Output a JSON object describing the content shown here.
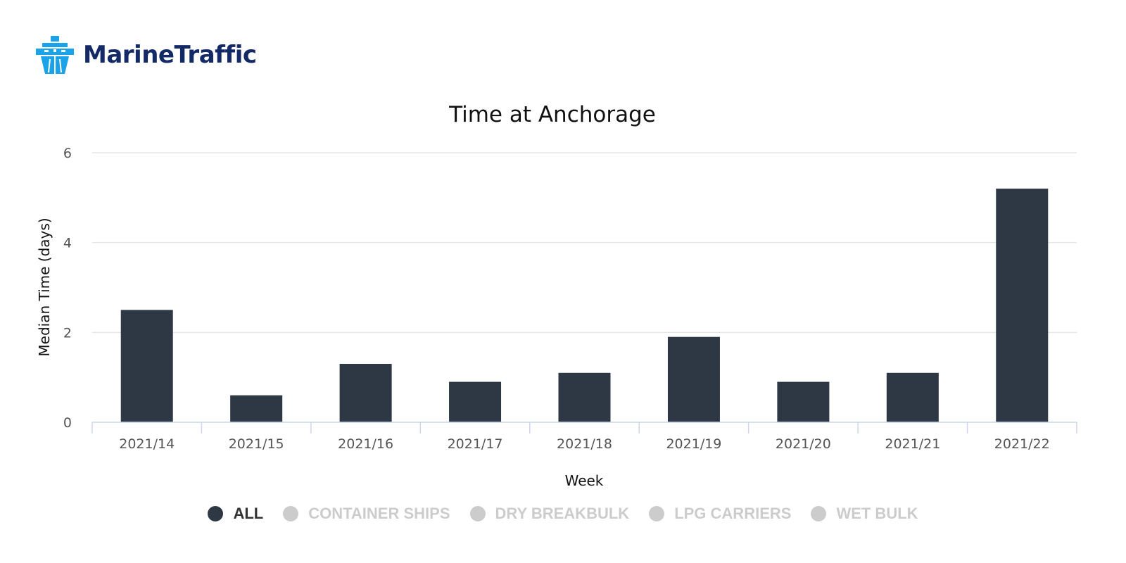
{
  "brand": {
    "name": "MarineTraffic",
    "logo_icon": "ship-bow-icon",
    "logo_color": "#1aa3e8",
    "text_color": "#142a66"
  },
  "chart_data": {
    "type": "bar",
    "title": "Time at Anchorage",
    "xlabel": "Week",
    "ylabel": "Median Time (days)",
    "categories": [
      "2021/14",
      "2021/15",
      "2021/16",
      "2021/17",
      "2021/18",
      "2021/19",
      "2021/20",
      "2021/21",
      "2021/22"
    ],
    "series": [
      {
        "name": "ALL",
        "color": "#2d3844",
        "values": [
          2.5,
          0.6,
          1.3,
          0.9,
          1.1,
          1.9,
          0.9,
          1.1,
          5.2
        ]
      }
    ],
    "ylim": [
      0,
      6
    ],
    "yticks": [
      0,
      2,
      4,
      6
    ],
    "grid": true,
    "legend_position": "bottom-center"
  },
  "legend": {
    "items": [
      {
        "label": "ALL",
        "active": true,
        "color": "#2d3844"
      },
      {
        "label": "CONTAINER SHIPS",
        "active": false,
        "color": "#cccccc"
      },
      {
        "label": "DRY BREAKBULK",
        "active": false,
        "color": "#cccccc"
      },
      {
        "label": "LPG CARRIERS",
        "active": false,
        "color": "#cccccc"
      },
      {
        "label": "WET BULK",
        "active": false,
        "color": "#cccccc"
      }
    ]
  }
}
